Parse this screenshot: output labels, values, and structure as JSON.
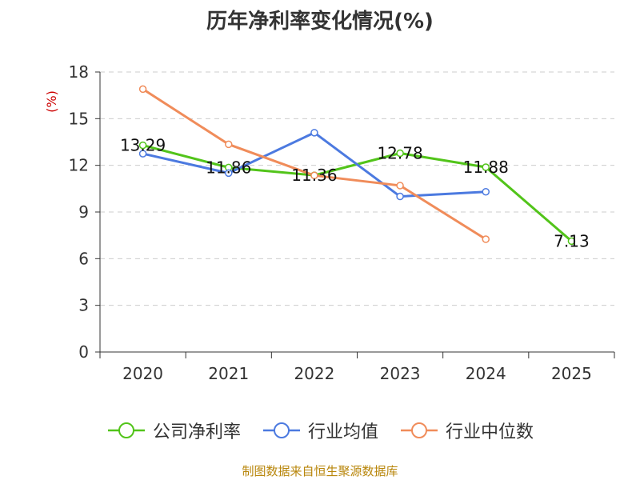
{
  "chart_data": {
    "type": "line",
    "title": "历年净利率变化情况(%)",
    "ylabel": "(%)",
    "xlabel": "",
    "ylim": [
      0,
      18
    ],
    "yticks": [
      0,
      3,
      6,
      9,
      12,
      15,
      18
    ],
    "categories": [
      "2020",
      "2021",
      "2022",
      "2023",
      "2024",
      "2025"
    ],
    "grid": true,
    "legend_position": "bottom",
    "series": [
      {
        "name": "公司净利率",
        "color": "#52c41a",
        "values": [
          13.29,
          11.86,
          11.36,
          12.78,
          11.88,
          7.13
        ],
        "show_labels": true
      },
      {
        "name": "行业均值",
        "color": "#4c7ae0",
        "values": [
          12.75,
          11.5,
          14.1,
          10.0,
          10.3,
          null
        ],
        "show_labels": false
      },
      {
        "name": "行业中位数",
        "color": "#f08c5a",
        "values": [
          16.9,
          13.35,
          11.35,
          10.7,
          7.25,
          null
        ],
        "show_labels": false
      }
    ]
  },
  "source_text": "制图数据来自恒生聚源数据库"
}
